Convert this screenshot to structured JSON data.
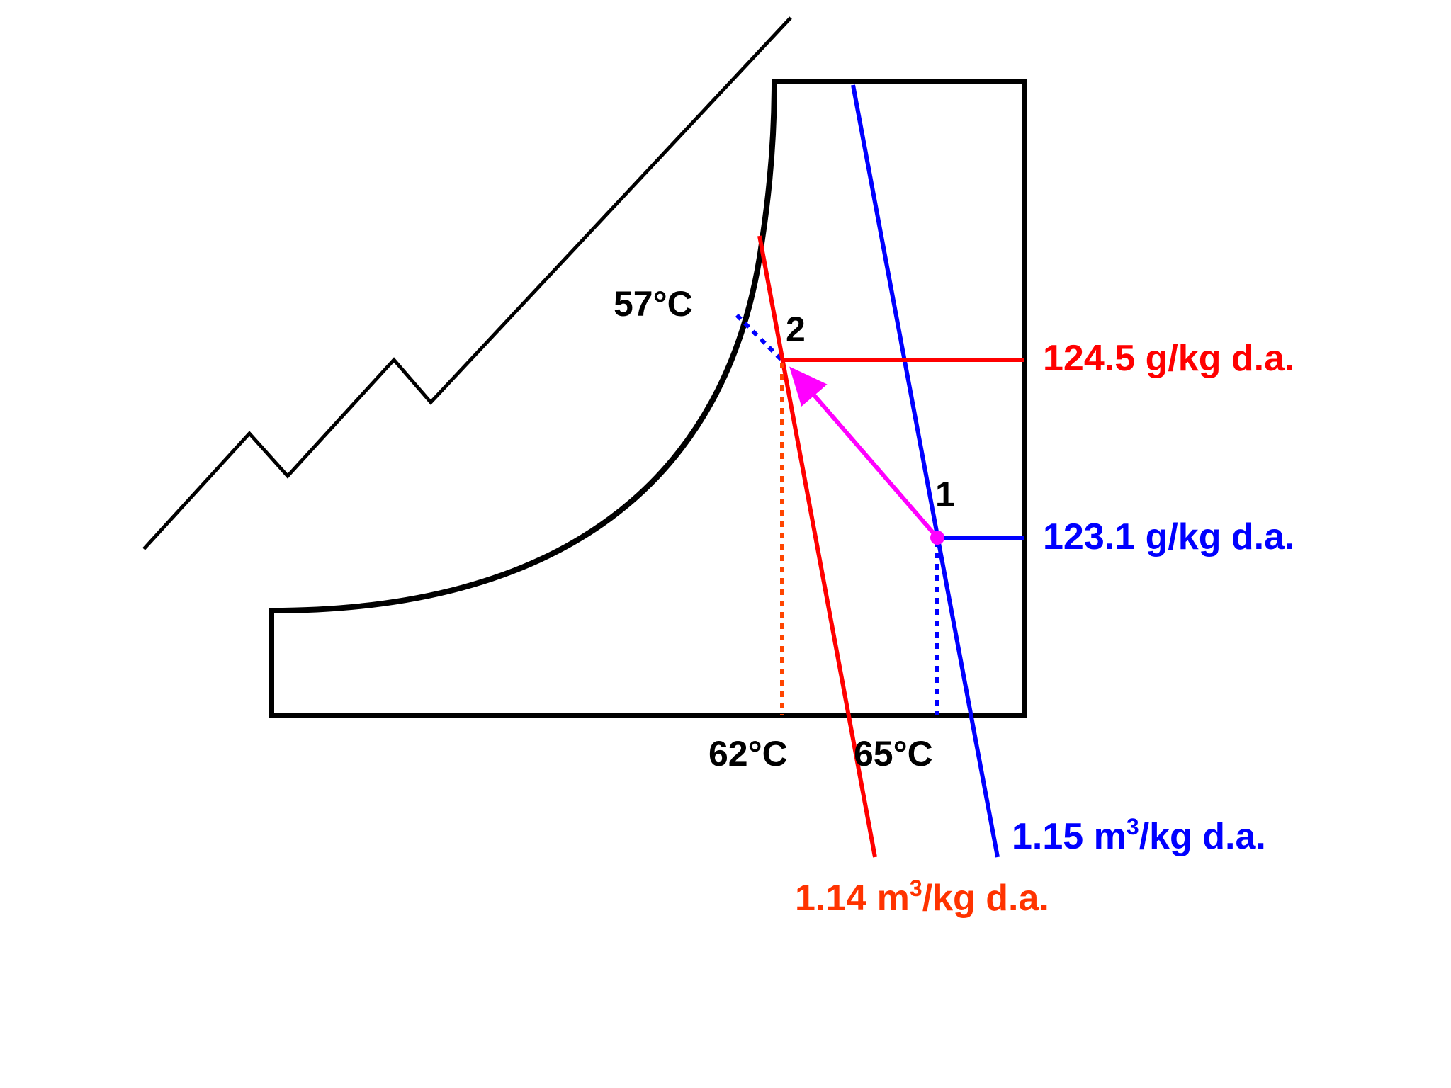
{
  "colors": {
    "outline": "#000000",
    "state2": "#ff0000",
    "state1": "#0000ff",
    "process": "#ff00ff",
    "state2_volume_text": "#ff3300",
    "state2_dotted": "#ff4500"
  },
  "labels": {
    "t_57": "57°C",
    "t_62": "62°C",
    "t_65": "65°C",
    "point_1": "1",
    "point_2": "2",
    "humidity_2": "124.5 g/kg d.a.",
    "humidity_1": "123.1 g/kg d.a.",
    "volume_1": {
      "prefix": "1.15 m",
      "sup": "3",
      "suffix": "/kg d.a."
    },
    "volume_2": {
      "prefix": "1.14 m",
      "sup": "3",
      "suffix": "/kg d.a."
    }
  }
}
